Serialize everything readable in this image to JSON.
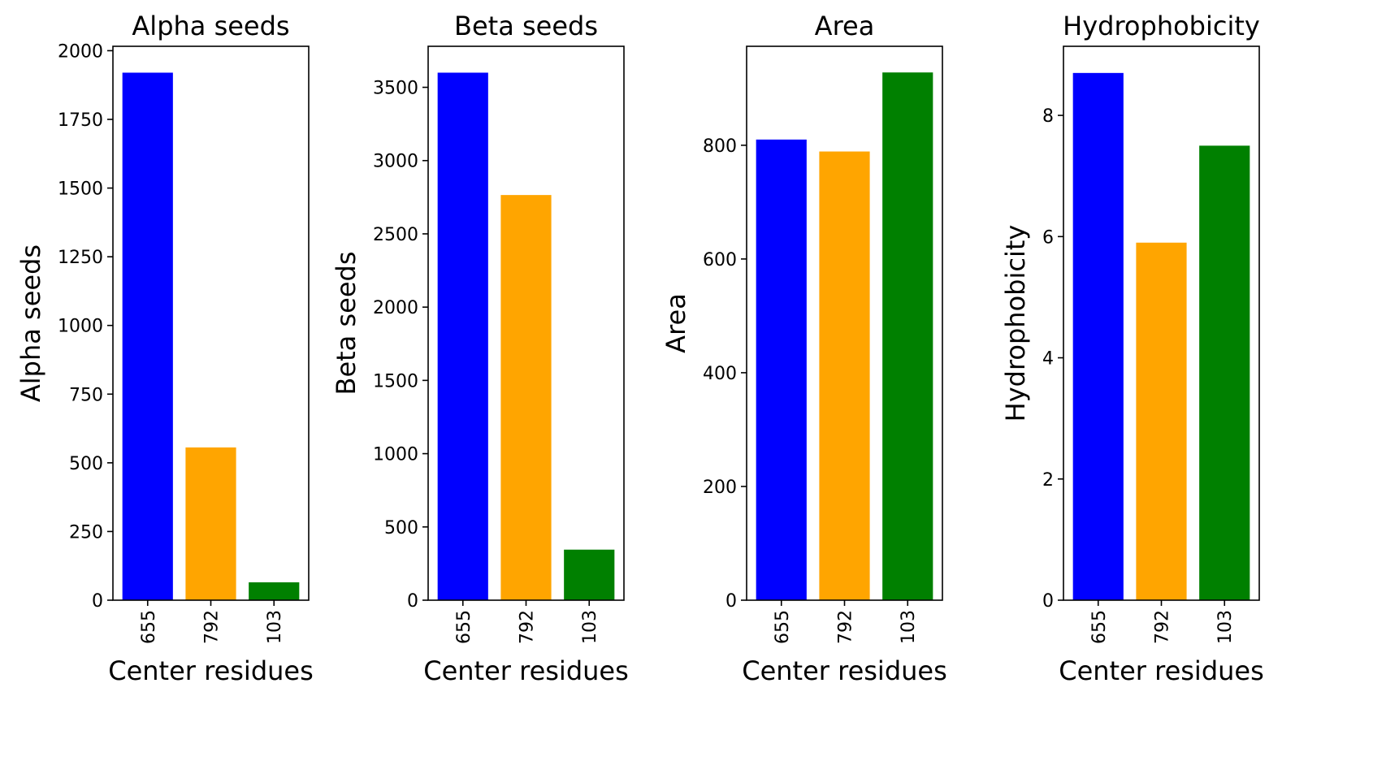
{
  "chart_data": [
    {
      "type": "bar",
      "title": "Alpha seeds",
      "xlabel": "Center residues",
      "ylabel": "Alpha seeds",
      "categories": [
        "655",
        "792",
        "103"
      ],
      "values": [
        1920,
        556,
        65
      ],
      "colors": [
        "#0000ff",
        "#ffa500",
        "#008000"
      ],
      "ylim": [
        0,
        2016
      ],
      "yticks": [
        "0",
        "250",
        "500",
        "750",
        "1000",
        "1250",
        "1500",
        "1750",
        "2000"
      ]
    },
    {
      "type": "bar",
      "title": "Beta seeds",
      "xlabel": "Center residues",
      "ylabel": "Beta seeds",
      "categories": [
        "655",
        "792",
        "103"
      ],
      "values": [
        3600,
        2765,
        345
      ],
      "colors": [
        "#0000ff",
        "#ffa500",
        "#008000"
      ],
      "ylim": [
        0,
        3780
      ],
      "yticks": [
        "0",
        "500",
        "1000",
        "1500",
        "2000",
        "2500",
        "3000",
        "3500"
      ]
    },
    {
      "type": "bar",
      "title": "Area",
      "xlabel": "Center residues",
      "ylabel": "Area",
      "categories": [
        "655",
        "792",
        "103"
      ],
      "values": [
        810,
        789,
        928
      ],
      "colors": [
        "#0000ff",
        "#ffa500",
        "#008000"
      ],
      "ylim": [
        0,
        974
      ],
      "yticks": [
        "0",
        "200",
        "400",
        "600",
        "800"
      ]
    },
    {
      "type": "bar",
      "title": "Hydrophobicity",
      "xlabel": "Center residues",
      "ylabel": "Hydrophobicity",
      "categories": [
        "655",
        "792",
        "103"
      ],
      "values": [
        8.7,
        5.9,
        7.5
      ],
      "colors": [
        "#0000ff",
        "#ffa500",
        "#008000"
      ],
      "ylim": [
        0,
        9.14
      ],
      "yticks": [
        "0",
        "2",
        "4",
        "6",
        "8"
      ]
    }
  ]
}
